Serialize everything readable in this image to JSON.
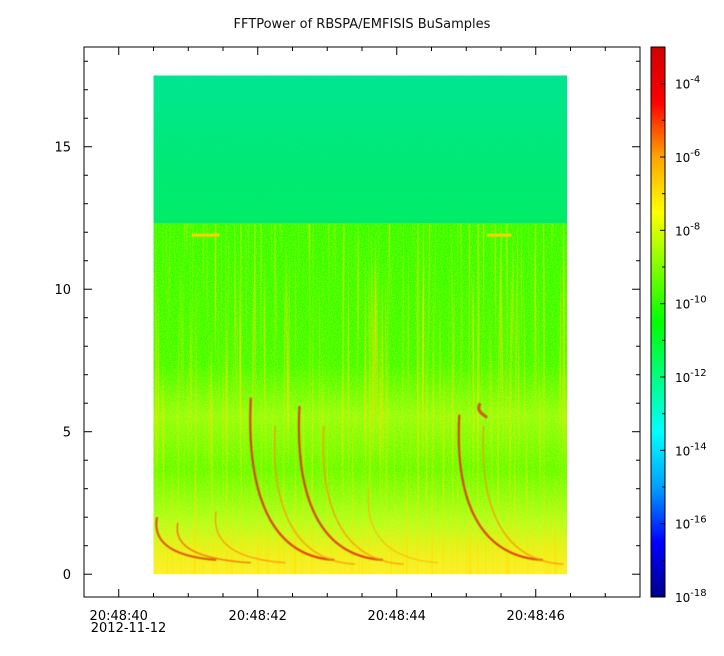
{
  "chart_data": {
    "type": "heatmap",
    "title": "FFTPower of RBSPA/EMFISIS  BuSamples",
    "xlabel": "",
    "ylabel": "",
    "x_ticks": [
      {
        "value": 40,
        "label": "20:48:40",
        "sublabel": "2012-11-12"
      },
      {
        "value": 42,
        "label": "20:48:42",
        "sublabel": ""
      },
      {
        "value": 44,
        "label": "20:48:44",
        "sublabel": ""
      },
      {
        "value": 46,
        "label": "20:48:46",
        "sublabel": ""
      }
    ],
    "x_minor_ticks": [
      39.5,
      40.5,
      41,
      41.5,
      42.5,
      43,
      43.5,
      44.5,
      45,
      45.5,
      46.5,
      47
    ],
    "xlim": [
      39.5,
      47.5
    ],
    "y_ticks": [
      0,
      5,
      10,
      15
    ],
    "ylim": [
      -0.8,
      18.5
    ],
    "data_extent": {
      "x": [
        40.5,
        46.45
      ],
      "y": [
        0,
        17.5
      ]
    },
    "colorbar": {
      "scale": "log",
      "range": [
        1e-18,
        0.001
      ],
      "tick_exponents": [
        -4,
        -6,
        -8,
        -10,
        -12,
        -14,
        -16,
        -18
      ],
      "base": "10"
    },
    "colormap": [
      "#00008b",
      "#0000ff",
      "#00a0ff",
      "#00ffff",
      "#00ff80",
      "#00ff00",
      "#80ff00",
      "#ffff00",
      "#ffa500",
      "#ff0000",
      "#d00000"
    ],
    "features": {
      "background_high_band": "#00e676",
      "cutoff_frequency": 12.3,
      "chorus_element_times": [
        41.9,
        42.6,
        44.9
      ],
      "color_at_low_freq": "#ffff00",
      "color_at_mid_freq": "#40ff00"
    }
  }
}
